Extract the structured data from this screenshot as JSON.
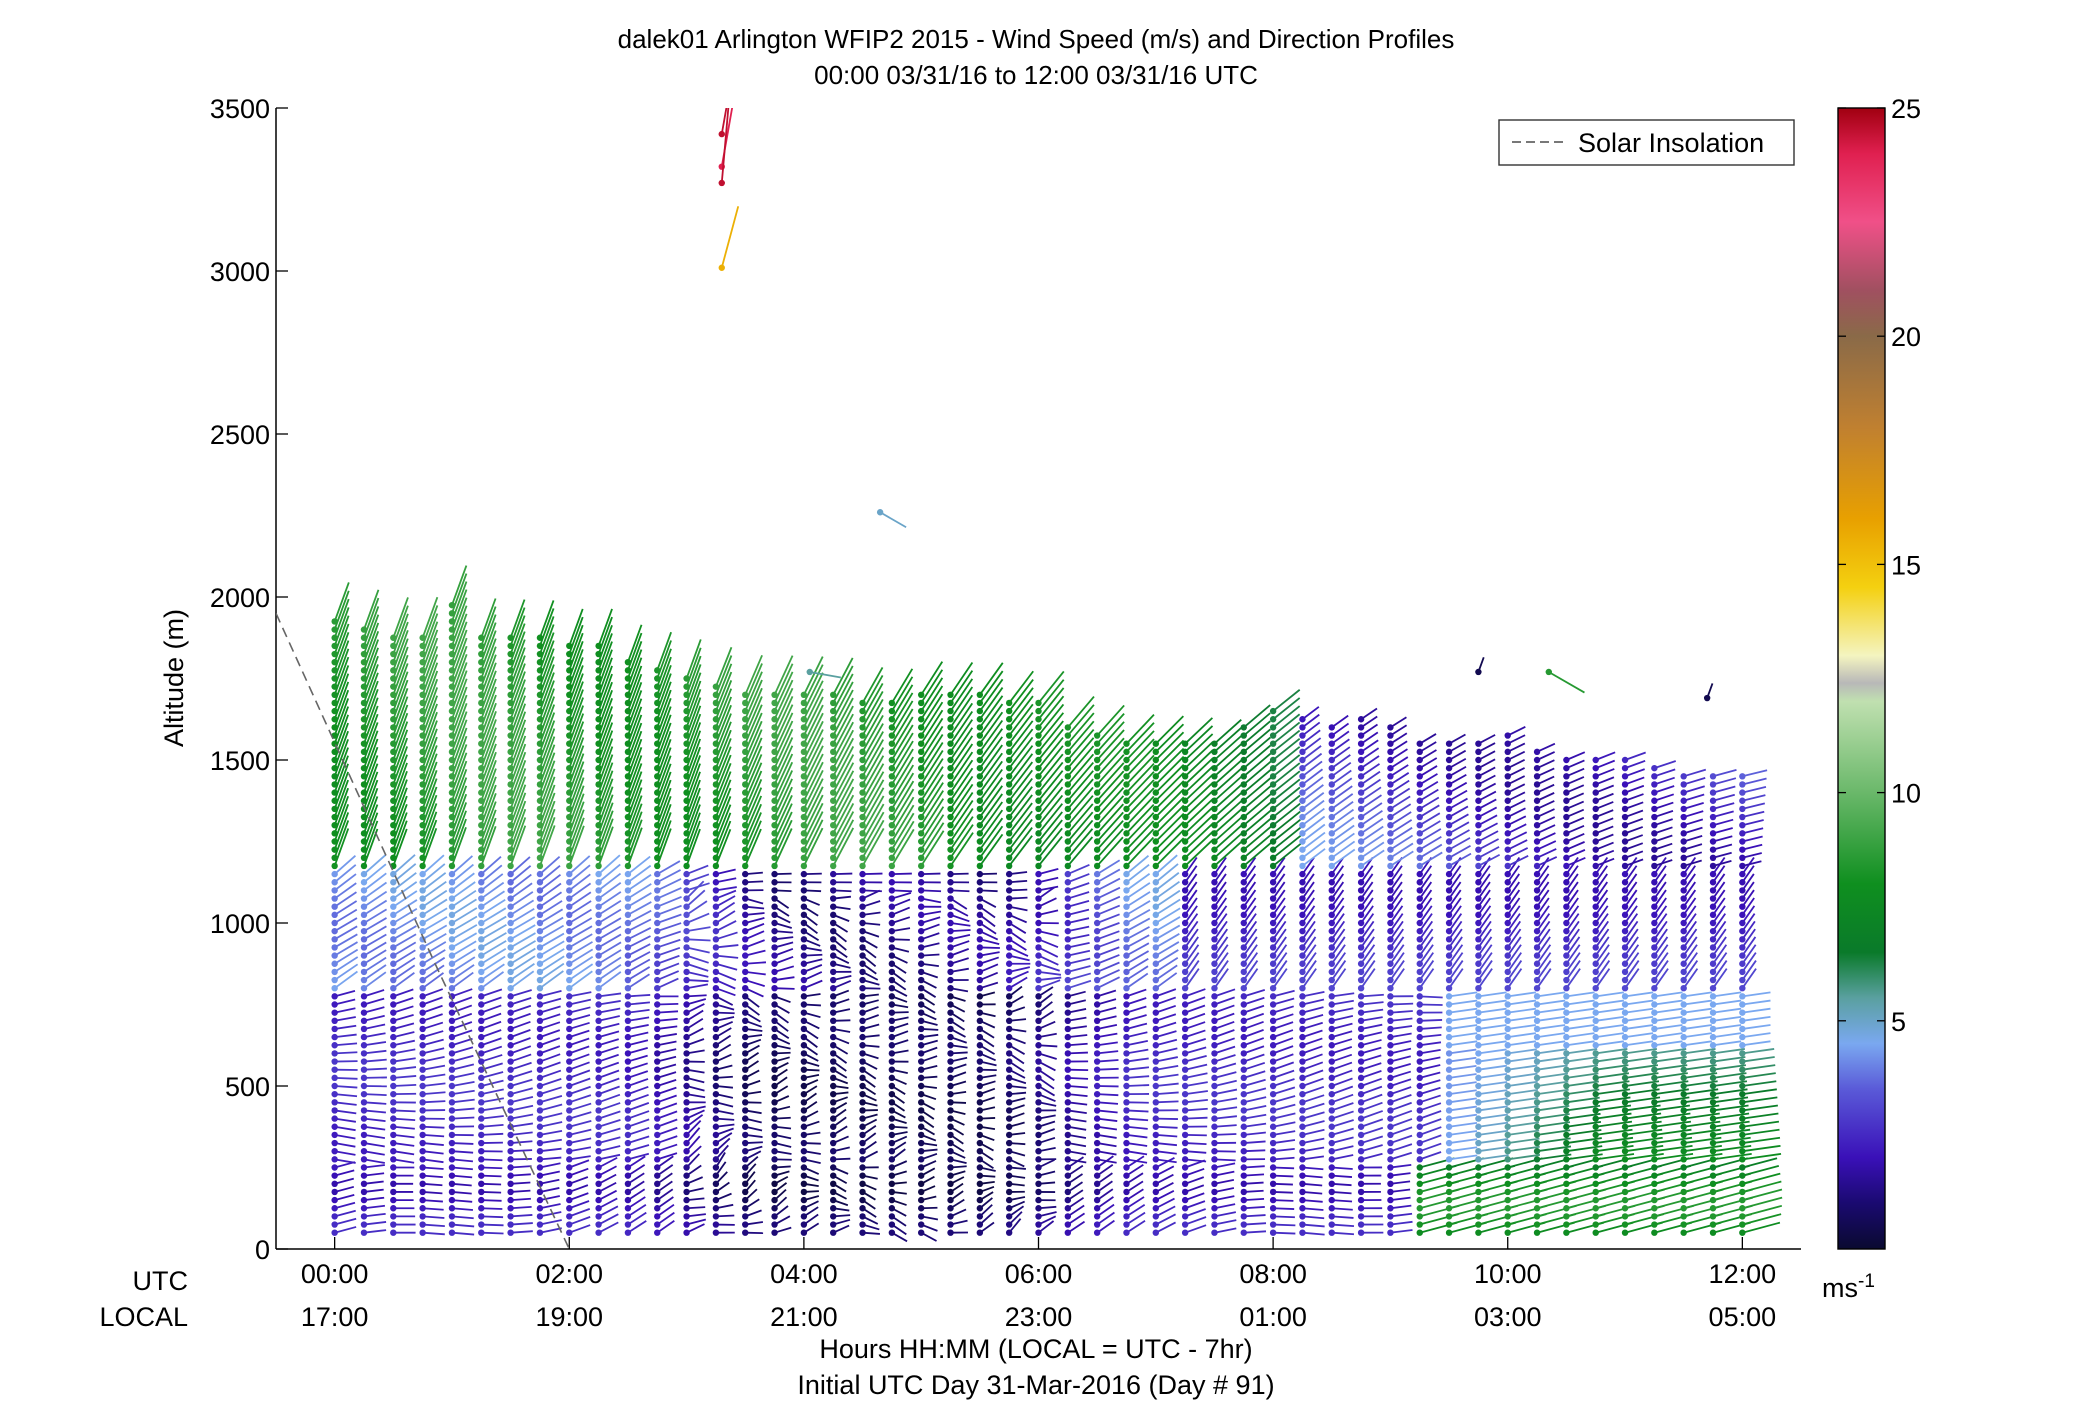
{
  "chart_data": {
    "type": "wind-barb-profile",
    "title": "dalek01 Arlington WFIP2 2015 - Wind Speed (m/s) and Direction Profiles",
    "subtitle": "00:00 03/31/16 to 12:00 03/31/16  UTC",
    "ylabel": "Altitude (m)",
    "xlabel": "Hours HH:MM  (LOCAL = UTC - 7hr)",
    "xlabel2": "Initial UTC Day 31-Mar-2016 (Day # 91)",
    "utc_row_label": "UTC",
    "local_row_label": "LOCAL",
    "ylim": [
      0,
      3500
    ],
    "xlim_hours": [
      -0.5,
      12.5
    ],
    "y_ticks": [
      0,
      500,
      1000,
      1500,
      2000,
      2500,
      3000,
      3500
    ],
    "y_tick_labels": [
      "0",
      "500",
      "1000",
      "1500",
      "2000",
      "2500",
      "3000",
      "3500"
    ],
    "x_ticks_hours": [
      0,
      2,
      4,
      6,
      8,
      10,
      12
    ],
    "x_tick_labels_utc": [
      "00:00",
      "02:00",
      "04:00",
      "06:00",
      "08:00",
      "10:00",
      "12:00"
    ],
    "x_tick_labels_local": [
      "17:00",
      "19:00",
      "21:00",
      "23:00",
      "01:00",
      "03:00",
      "05:00"
    ],
    "legend": [
      {
        "label": "Solar Insolation",
        "style": "dashed",
        "color": "#777777"
      }
    ],
    "legend_placement": "top-right",
    "colorbar": {
      "min": 0,
      "max": 25,
      "ticks": [
        5,
        10,
        15,
        20,
        25
      ],
      "tick_labels": [
        "5",
        "10",
        "15",
        "20",
        "25"
      ],
      "unit_label": "ms",
      "unit_exponent": "-1",
      "stops": [
        [
          0,
          "#0a0a30"
        ],
        [
          1,
          "#1a0a70"
        ],
        [
          2,
          "#3a10b8"
        ],
        [
          3.5,
          "#5a5ad8"
        ],
        [
          4.5,
          "#7aa8f0"
        ],
        [
          5.5,
          "#5aa0a0"
        ],
        [
          6.5,
          "#0a7a2a"
        ],
        [
          8,
          "#0f8f1f"
        ],
        [
          10,
          "#6ab86a"
        ],
        [
          12,
          "#c0e0b0"
        ],
        [
          12.4,
          "#b8b8b8"
        ],
        [
          13,
          "#f4f4c0"
        ],
        [
          14.5,
          "#f4d010"
        ],
        [
          16,
          "#e8a000"
        ],
        [
          18,
          "#c08030"
        ],
        [
          20,
          "#8a6a48"
        ],
        [
          21,
          "#a05060"
        ],
        [
          22.5,
          "#f05088"
        ],
        [
          24,
          "#e02050"
        ],
        [
          25,
          "#a00010"
        ]
      ]
    },
    "solar_insolation": [
      {
        "x": -0.5,
        "y": 1950
      },
      {
        "x": 0.85,
        "y": 880
      },
      {
        "x": 2.0,
        "y": 0
      }
    ],
    "profile_times_hours": [
      0,
      0.25,
      0.5,
      0.75,
      1,
      1.25,
      1.5,
      1.75,
      2,
      2.25,
      2.5,
      2.75,
      3,
      3.25,
      3.5,
      3.75,
      4,
      4.25,
      4.5,
      4.75,
      5,
      5.25,
      5.5,
      5.75,
      6,
      6.25,
      6.5,
      6.75,
      7,
      7.25,
      7.5,
      7.75,
      8,
      8.25,
      8.5,
      8.75,
      9,
      9.25,
      9.5,
      9.75,
      10,
      10.25,
      10.5,
      10.75,
      11,
      11.25,
      11.5,
      11.75,
      12
    ],
    "top_altitude_m": [
      1930,
      1920,
      1890,
      1880,
      1990,
      1880,
      1880,
      1880,
      1860,
      1850,
      1800,
      1780,
      1750,
      1730,
      1720,
      1710,
      1700,
      1700,
      1690,
      1690,
      1700,
      1700,
      1700,
      1690,
      1690,
      1600,
      1580,
      1570,
      1560,
      1550,
      1560,
      1620,
      1660,
      1640,
      1600,
      1640,
      1620,
      1560,
      1560,
      1560,
      1580,
      1540,
      1520,
      1500,
      1500,
      1480,
      1470,
      1470,
      1470
    ],
    "range_gate_m": 25,
    "isolated_obs": [
      {
        "time_hours": 3.3,
        "altitude_m": 3420,
        "speed": 24.5,
        "dir_deg": 190
      },
      {
        "time_hours": 3.3,
        "altitude_m": 3320,
        "speed": 24.0,
        "dir_deg": 190
      },
      {
        "time_hours": 3.3,
        "altitude_m": 3270,
        "speed": 24.5,
        "dir_deg": 185
      },
      {
        "time_hours": 3.3,
        "altitude_m": 3010,
        "speed": 15.5,
        "dir_deg": 195
      },
      {
        "time_hours": 4.65,
        "altitude_m": 2260,
        "speed": 5.0,
        "dir_deg": 300
      },
      {
        "time_hours": 4.05,
        "altitude_m": 1770,
        "speed": 5.5,
        "dir_deg": 280
      },
      {
        "time_hours": 10.35,
        "altitude_m": 1770,
        "speed": 8.5,
        "dir_deg": 300
      },
      {
        "time_hours": 9.75,
        "altitude_m": 1770,
        "speed": 0.5,
        "dir_deg": 200
      },
      {
        "time_hours": 11.7,
        "altitude_m": 1690,
        "speed": 0.5,
        "dir_deg": 200
      }
    ]
  }
}
